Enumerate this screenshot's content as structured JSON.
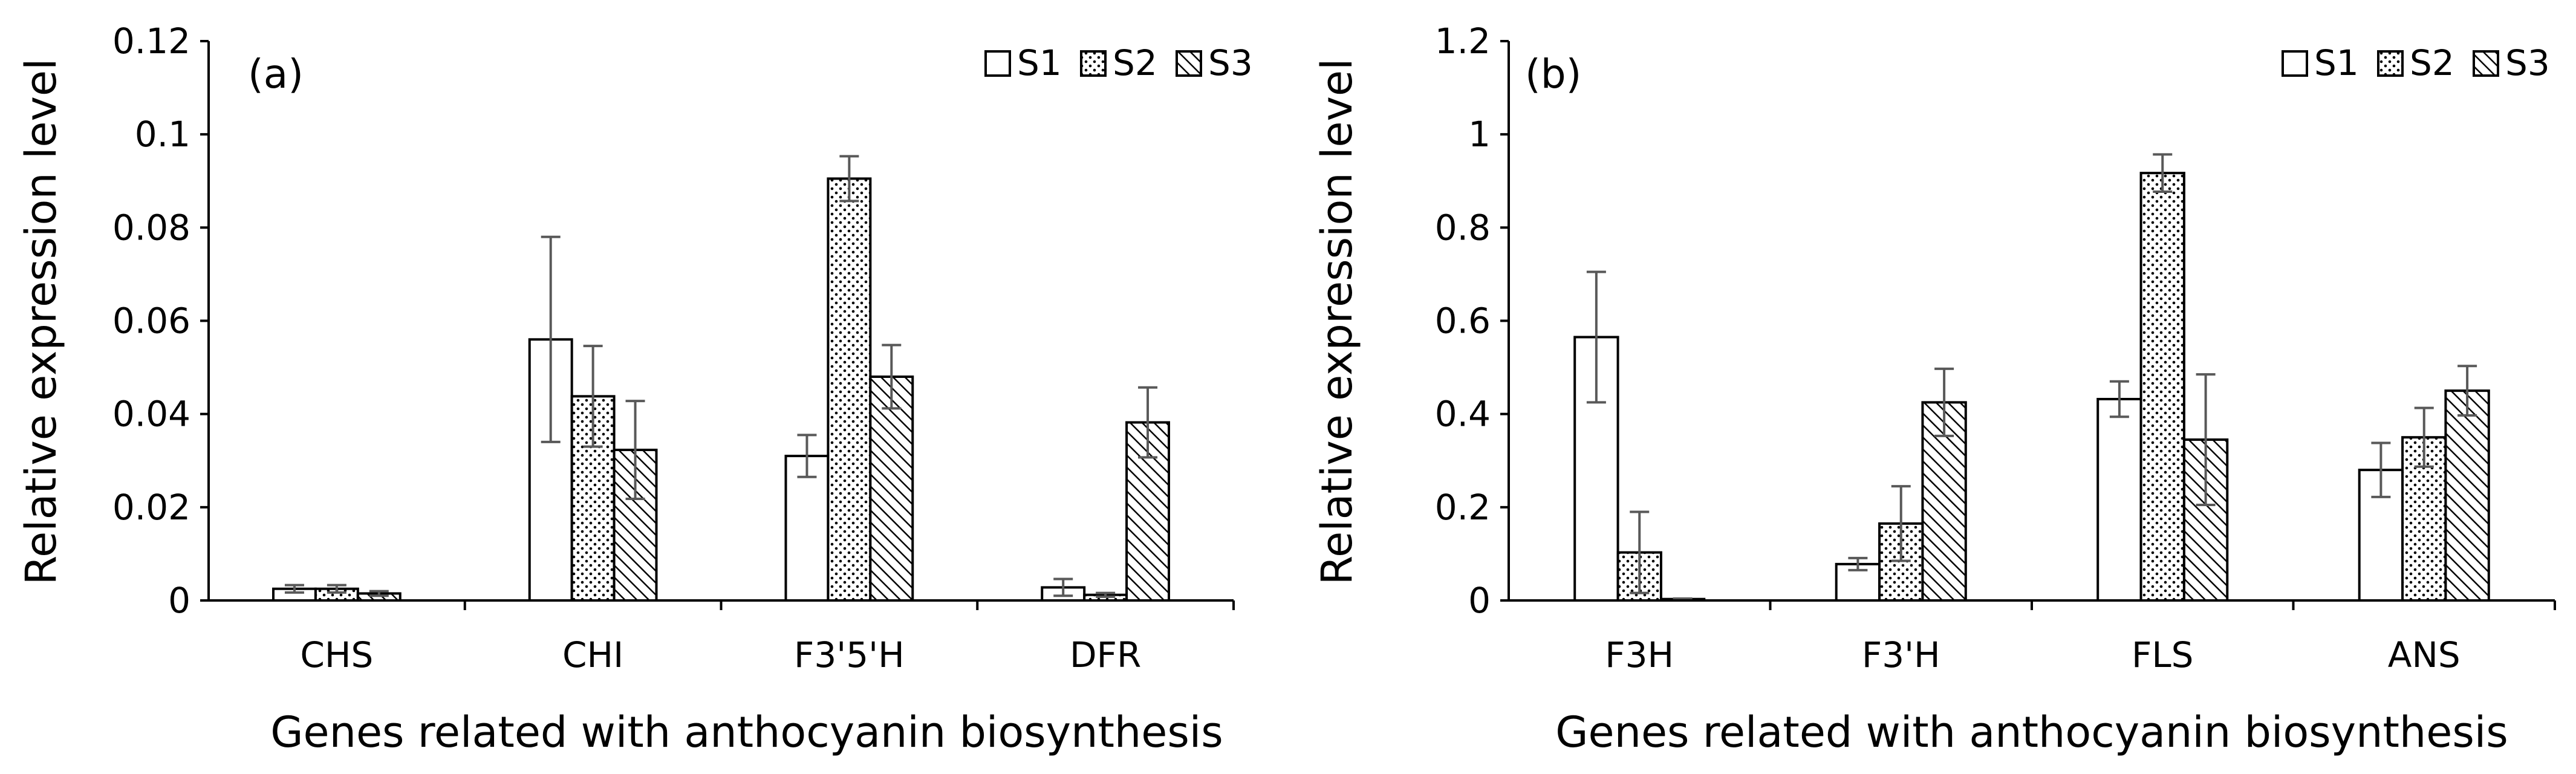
{
  "colors": {
    "axis": "#000000",
    "error_bar": "#595959",
    "bar_fill": "#ffffff",
    "bar_stroke": "#000000"
  },
  "chart_data": [
    {
      "type": "bar",
      "panel_label": "(a)",
      "categories": [
        "CHS",
        "CHI",
        "F3'5'H",
        "DFR"
      ],
      "series": [
        {
          "name": "S1",
          "pattern": "none",
          "values": [
            0.0025,
            0.056,
            0.031,
            0.0028
          ],
          "errors": [
            0.0008,
            0.022,
            0.0045,
            0.0018
          ]
        },
        {
          "name": "S2",
          "pattern": "dots",
          "values": [
            0.0025,
            0.0438,
            0.0905,
            0.0012
          ],
          "errors": [
            0.0008,
            0.0108,
            0.0048,
            0.0004
          ]
        },
        {
          "name": "S3",
          "pattern": "diagonal",
          "values": [
            0.0015,
            0.0323,
            0.048,
            0.0382
          ],
          "errors": [
            0.0005,
            0.0105,
            0.0068,
            0.0075
          ]
        }
      ],
      "ylim": [
        0,
        0.12
      ],
      "yticks": [
        0,
        0.02,
        0.04,
        0.06,
        0.08,
        0.1,
        0.12
      ],
      "ytick_labels": [
        "0",
        "0.02",
        "0.04",
        "0.06",
        "0.08",
        "0.1",
        "0.12"
      ],
      "xlabel": "Genes related with anthocyanin biosynthesis",
      "ylabel": "Relative expression level",
      "legend": "top-right"
    },
    {
      "type": "bar",
      "panel_label": "(b)",
      "categories": [
        "F3H",
        "F3'H",
        "FLS",
        "ANS"
      ],
      "series": [
        {
          "name": "S1",
          "pattern": "none",
          "values": [
            0.565,
            0.078,
            0.432,
            0.28
          ],
          "errors": [
            0.14,
            0.013,
            0.038,
            0.058
          ]
        },
        {
          "name": "S2",
          "pattern": "dots",
          "values": [
            0.103,
            0.165,
            0.917,
            0.35
          ],
          "errors": [
            0.087,
            0.08,
            0.04,
            0.063
          ]
        },
        {
          "name": "S3",
          "pattern": "diagonal",
          "values": [
            0.003,
            0.425,
            0.345,
            0.45
          ],
          "errors": [
            0.001,
            0.072,
            0.14,
            0.053
          ]
        }
      ],
      "ylim": [
        0,
        1.2
      ],
      "yticks": [
        0,
        0.2,
        0.4,
        0.6,
        0.8,
        1,
        1.2
      ],
      "ytick_labels": [
        "0",
        "0.2",
        "0.4",
        "0.6",
        "0.8",
        "1",
        "1.2"
      ],
      "xlabel": "Genes related with anthocyanin biosynthesis",
      "ylabel": "Relative expression level",
      "legend": "top-right"
    }
  ]
}
